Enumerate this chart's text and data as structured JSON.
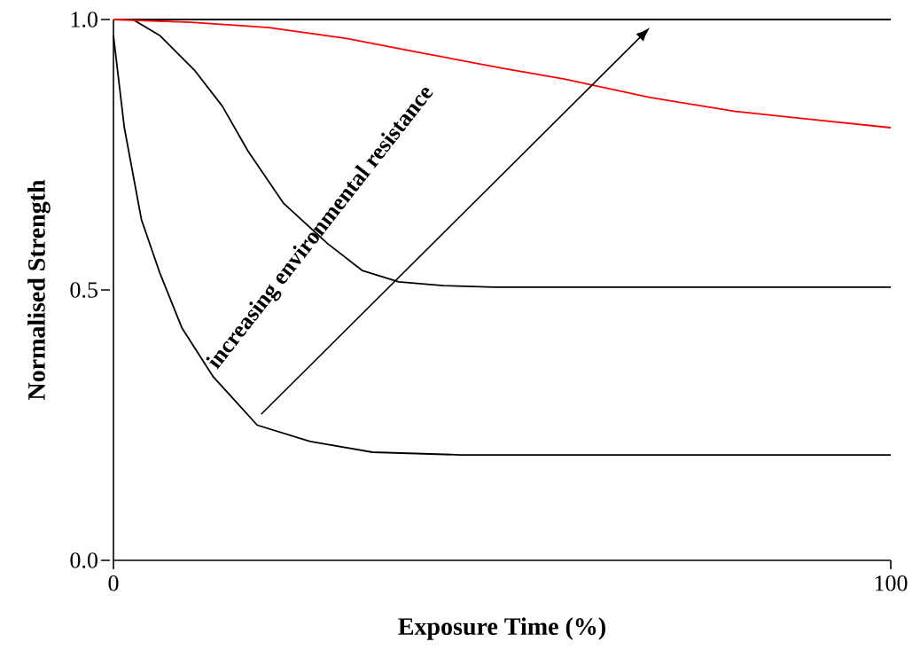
{
  "chart_data": {
    "type": "line",
    "xlabel": "Exposure Time (%)",
    "ylabel": "Normalised Strength",
    "series": [
      {
        "color": "#000000",
        "x": [
          0,
          100
        ],
        "values": [
          1.0,
          1.0
        ]
      },
      {
        "color": "#000000",
        "x": [
          0,
          2.5,
          6,
          10.5,
          14,
          17.3,
          21.9,
          27.6,
          32,
          36.7,
          42.4,
          49,
          100
        ],
        "values": [
          1.0,
          1.0,
          0.97,
          0.905,
          0.84,
          0.757,
          0.66,
          0.585,
          0.536,
          0.515,
          0.508,
          0.505,
          0.505
        ]
      },
      {
        "color": "#000000",
        "x": [
          0,
          1.4,
          3.6,
          6,
          8.8,
          12.8,
          18.5,
          25.3,
          33.3,
          44.7,
          100
        ],
        "values": [
          0.97,
          0.8,
          0.63,
          0.53,
          0.43,
          0.34,
          0.25,
          0.22,
          0.2,
          0.195,
          0.195
        ]
      },
      {
        "color": "#ff0000",
        "x": [
          0,
          10,
          20,
          30,
          39,
          50,
          58,
          69,
          80,
          90,
          100
        ],
        "values": [
          1.0,
          0.995,
          0.985,
          0.965,
          0.94,
          0.91,
          0.89,
          0.856,
          0.83,
          0.815,
          0.8
        ]
      }
    ],
    "xlim": [
      0,
      100
    ],
    "ylim": [
      0,
      1.0
    ],
    "xticks": [
      0,
      100
    ],
    "yticks": [
      {
        "value": 0,
        "label": "0.0"
      },
      {
        "value": 0.5,
        "label": "0.5"
      },
      {
        "value": 1.0,
        "label": "1.0"
      }
    ],
    "annotations": [
      "increasing environmental resistance"
    ],
    "grid": false,
    "marker": "none",
    "line_style": "solid"
  }
}
